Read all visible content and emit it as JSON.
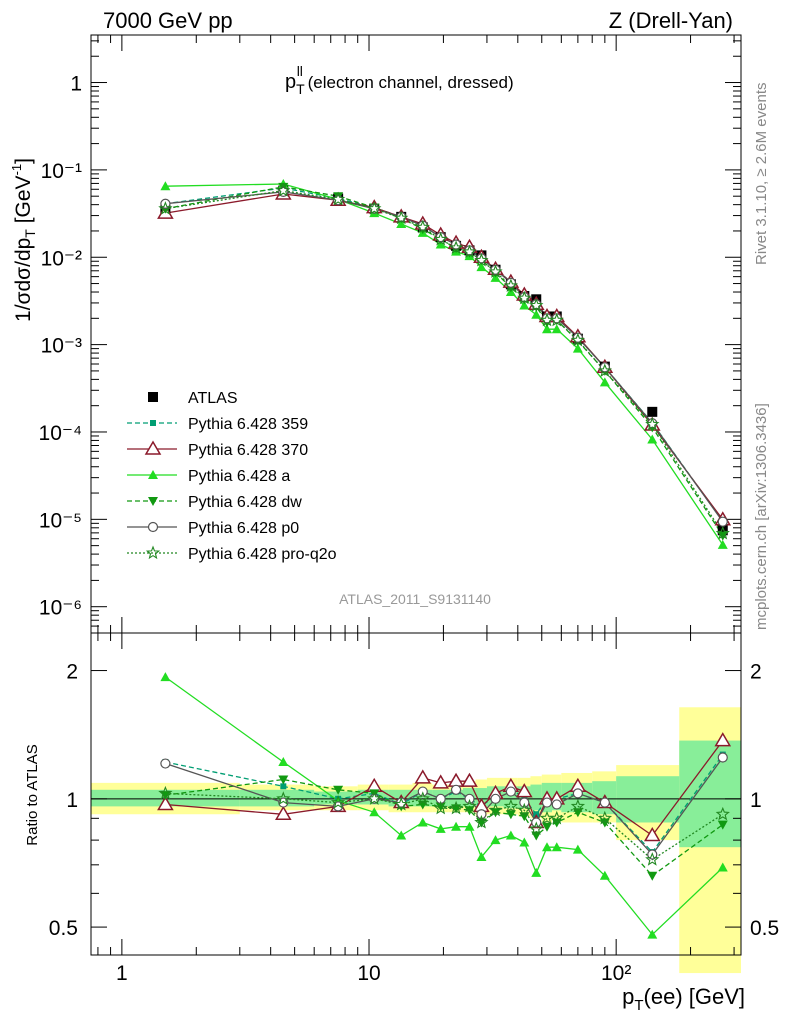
{
  "header": {
    "left": "7000 GeV pp",
    "right": "Z (Drell-Yan)"
  },
  "side_labels": {
    "rivet": "Rivet 3.1.10, ≥ 2.6M events",
    "mcplots": "mcplots.cern.ch [arXiv:1306.3436]"
  },
  "plot_title": {
    "main": "p",
    "sup": "ll",
    "sub": "T",
    "rest": " (electron channel, dressed)"
  },
  "analysis_id": "ATLAS_2011_S9131140",
  "y_label_top": "1/σdσ/dp",
  "y_label_top_sub": "T",
  "y_label_top_unit": " [GeV",
  "y_label_top_unit_sup": "-1",
  "y_label_top_unit_close": "]",
  "y_label_bottom": "Ratio to ATLAS",
  "x_label": "p",
  "x_label_sub": "T",
  "x_label_rest": "(ee) [GeV]",
  "colors": {
    "atlas": "#000000",
    "p359": "#009e73",
    "p370": "#8b1a2b",
    "pa": "#22dd22",
    "pdw": "#119911",
    "pp0": "#555555",
    "pq2o": "#228822",
    "band_yellow": "#ffff99",
    "band_green": "#88ee99"
  },
  "chart_data": [
    {
      "type": "line",
      "panel": "main",
      "xscale": "log",
      "yscale": "log",
      "xlim": [
        0.75,
        320
      ],
      "ylim": [
        5e-07,
        3.5
      ],
      "x_tick_labels": [
        "1",
        "10",
        "10²"
      ],
      "y_tick_labels": [
        "10⁻⁶",
        "10⁻⁵",
        "10⁻⁴",
        "10⁻³",
        "10⁻²",
        "10⁻¹",
        "1"
      ],
      "x": [
        1.5,
        4.5,
        7.5,
        10.5,
        13.5,
        16.5,
        19.5,
        22.5,
        25.5,
        28.5,
        32.5,
        37.5,
        42.5,
        47.5,
        52.5,
        57.5,
        70,
        90,
        140,
        270
      ],
      "series": [
        {
          "name": "ATLAS",
          "key": "atlas",
          "values": [
            0.035,
            0.058,
            0.047,
            0.036,
            0.029,
            0.022,
            0.017,
            0.0135,
            0.012,
            0.0105,
            0.0072,
            0.0049,
            0.0036,
            0.0033,
            0.0021,
            0.0021,
            0.00117,
            0.00056,
            0.00017,
            7.5e-06
          ]
        },
        {
          "name": "Pythia 6.428 359",
          "key": "p359",
          "values": [
            0.041,
            0.062,
            0.047,
            0.037,
            0.029,
            0.023,
            0.017,
            0.014,
            0.012,
            0.01,
            0.0074,
            0.0052,
            0.0036,
            0.003,
            0.0021,
            0.0021,
            0.0012,
            0.00055,
            0.000127,
            9.5e-06
          ]
        },
        {
          "name": "Pythia 6.428 370",
          "key": "p370",
          "values": [
            0.032,
            0.053,
            0.045,
            0.037,
            0.029,
            0.024,
            0.018,
            0.0145,
            0.013,
            0.01,
            0.0073,
            0.0052,
            0.0037,
            0.0029,
            0.0021,
            0.0021,
            0.00123,
            0.00055,
            0.00012,
            9.9e-06
          ]
        },
        {
          "name": "Pythia 6.428 a",
          "key": "pa",
          "values": [
            0.065,
            0.069,
            0.046,
            0.032,
            0.024,
            0.019,
            0.014,
            0.0116,
            0.0103,
            0.0077,
            0.0058,
            0.004,
            0.0028,
            0.0022,
            0.0015,
            0.0015,
            0.0009,
            0.00037,
            8.2e-05,
            5.1e-06
          ]
        },
        {
          "name": "Pythia 6.428 dw",
          "key": "pdw",
          "values": [
            0.036,
            0.064,
            0.05,
            0.037,
            0.028,
            0.021,
            0.016,
            0.0127,
            0.0113,
            0.0093,
            0.0067,
            0.0045,
            0.0033,
            0.0027,
            0.0018,
            0.0019,
            0.0011,
            0.0005,
            0.000113,
            6.5e-06
          ]
        },
        {
          "name": "Pythia 6.428 p0",
          "key": "pp0",
          "values": [
            0.041,
            0.056,
            0.045,
            0.036,
            0.029,
            0.023,
            0.017,
            0.014,
            0.012,
            0.0097,
            0.0072,
            0.0051,
            0.0035,
            0.0029,
            0.002,
            0.002,
            0.0012,
            0.00055,
            0.000126,
            9.4e-06
          ]
        },
        {
          "name": "Pythia 6.428 pro-q2o",
          "key": "pq2o",
          "values": [
            0.036,
            0.058,
            0.046,
            0.036,
            0.028,
            0.022,
            0.016,
            0.0128,
            0.0115,
            0.0092,
            0.0068,
            0.0047,
            0.0034,
            0.0028,
            0.0019,
            0.0019,
            0.00112,
            0.0005,
            0.000122,
            6.9e-06
          ]
        }
      ]
    },
    {
      "type": "line",
      "panel": "ratio",
      "xscale": "log",
      "yscale": "log",
      "xlim": [
        0.75,
        320
      ],
      "ylim": [
        0.43,
        2.45
      ],
      "y_tick_labels": [
        "0.5",
        "1",
        "2"
      ],
      "x": [
        1.5,
        4.5,
        7.5,
        10.5,
        13.5,
        16.5,
        19.5,
        22.5,
        25.5,
        28.5,
        32.5,
        37.5,
        42.5,
        47.5,
        52.5,
        57.5,
        70,
        90,
        140,
        270
      ],
      "series": [
        {
          "name": "Pythia 6.428 359",
          "key": "p359",
          "values": [
            1.22,
            1.07,
            1.0,
            1.03,
            0.97,
            1.04,
            1.0,
            1.04,
            1.0,
            0.96,
            1.02,
            1.06,
            1.0,
            0.92,
            1.0,
            1.0,
            1.03,
            0.98,
            0.75,
            1.27
          ]
        },
        {
          "name": "Pythia 6.428 370",
          "key": "p370",
          "values": [
            0.97,
            0.92,
            0.96,
            1.07,
            0.98,
            1.12,
            1.09,
            1.1,
            1.1,
            0.96,
            1.03,
            1.07,
            1.04,
            0.88,
            1.0,
            1.0,
            1.07,
            0.98,
            0.82,
            1.37
          ]
        },
        {
          "name": "Pythia 6.428 a",
          "key": "pa",
          "values": [
            1.93,
            1.22,
            0.99,
            0.93,
            0.82,
            0.88,
            0.85,
            0.86,
            0.86,
            0.73,
            0.8,
            0.82,
            0.79,
            0.67,
            0.77,
            0.77,
            0.76,
            0.66,
            0.48,
            0.69
          ]
        },
        {
          "name": "Pythia 6.428 dw",
          "key": "pdw",
          "values": [
            1.02,
            1.11,
            1.05,
            1.03,
            0.96,
            0.97,
            0.96,
            0.95,
            0.94,
            0.88,
            0.93,
            0.92,
            0.91,
            0.82,
            0.86,
            0.88,
            0.93,
            0.88,
            0.66,
            0.87
          ]
        },
        {
          "name": "Pythia 6.428 p0",
          "key": "pp0",
          "values": [
            1.21,
            0.98,
            0.96,
            1.0,
            0.98,
            1.04,
            1.0,
            1.05,
            1.0,
            0.92,
            1.0,
            1.04,
            0.98,
            0.88,
            0.98,
            0.97,
            1.03,
            0.98,
            0.74,
            1.25
          ]
        },
        {
          "name": "Pythia 6.428 pro-q2o",
          "key": "pq2o",
          "values": [
            1.03,
            1.0,
            0.98,
            1.0,
            0.97,
            1.0,
            0.95,
            0.95,
            0.96,
            0.88,
            0.94,
            0.96,
            0.94,
            0.85,
            0.9,
            0.9,
            0.96,
            0.9,
            0.72,
            0.92
          ]
        }
      ],
      "bands": {
        "bin_edges": [
          0.75,
          3,
          6,
          9,
          12,
          15,
          18,
          21,
          24,
          27,
          30,
          35,
          40,
          45,
          50,
          55,
          60,
          80,
          100,
          180,
          320
        ],
        "yellow_lo": [
          0.92,
          0.94,
          0.94,
          0.94,
          0.93,
          0.93,
          0.93,
          0.93,
          0.93,
          0.91,
          0.92,
          0.92,
          0.91,
          0.9,
          0.88,
          0.9,
          0.88,
          0.88,
          0.8,
          0.39
        ],
        "yellow_hi": [
          1.09,
          1.08,
          1.07,
          1.08,
          1.08,
          1.09,
          1.08,
          1.08,
          1.1,
          1.11,
          1.12,
          1.12,
          1.12,
          1.13,
          1.14,
          1.14,
          1.15,
          1.16,
          1.2,
          1.64
        ],
        "green_lo": [
          0.96,
          0.96,
          0.97,
          0.97,
          0.96,
          0.96,
          0.96,
          0.96,
          0.96,
          0.95,
          0.96,
          0.95,
          0.95,
          0.94,
          0.93,
          0.94,
          0.93,
          0.92,
          0.88,
          0.77
        ],
        "green_hi": [
          1.05,
          1.05,
          1.04,
          1.05,
          1.05,
          1.05,
          1.05,
          1.05,
          1.06,
          1.06,
          1.07,
          1.07,
          1.07,
          1.08,
          1.09,
          1.09,
          1.09,
          1.1,
          1.13,
          1.37
        ]
      }
    }
  ]
}
